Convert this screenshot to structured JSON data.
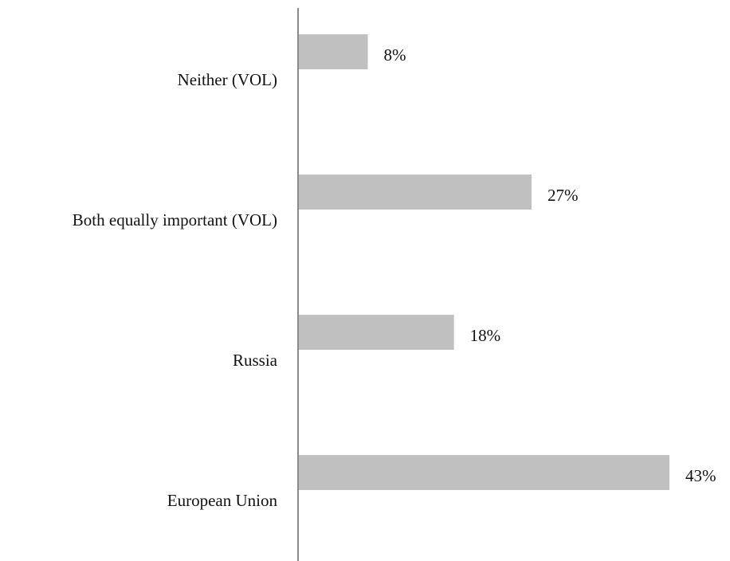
{
  "chart_data": {
    "type": "hbar",
    "categories": [
      "Neither (VOL)",
      "Both equally important (VOL)",
      "Russia",
      "European Union"
    ],
    "values": [
      8,
      27,
      18,
      43
    ],
    "value_labels": [
      "8%",
      "27%",
      "18%",
      "43%"
    ],
    "color": "#c0c0c0"
  }
}
